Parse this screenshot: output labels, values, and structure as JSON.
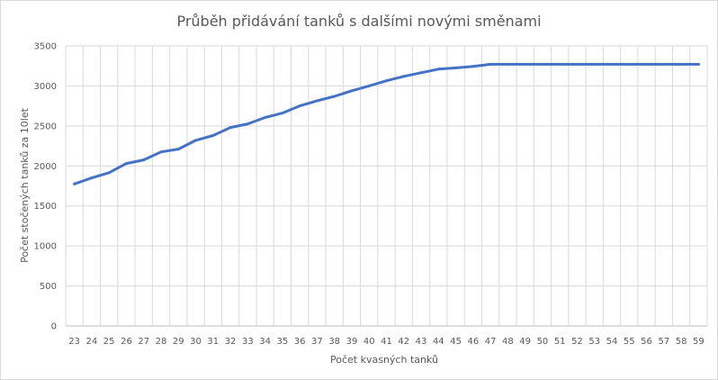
{
  "chart_data": {
    "type": "line",
    "title": "Průběh přidávání tanků s dalšími novými směnami",
    "xlabel": "Počet kvasných tanků",
    "ylabel": "Počet stočených tanků za 10let",
    "categories": [
      "23",
      "24",
      "25",
      "26",
      "27",
      "28",
      "29",
      "30",
      "31",
      "32",
      "33",
      "34",
      "35",
      "36",
      "37",
      "38",
      "39",
      "40",
      "41",
      "42",
      "43",
      "44",
      "45",
      "46",
      "47",
      "48",
      "49",
      "50",
      "51",
      "52",
      "53",
      "54",
      "55",
      "56",
      "57",
      "58",
      "59"
    ],
    "yticks": [
      "0",
      "500",
      "1000",
      "1500",
      "2000",
      "2500",
      "3000",
      "3500"
    ],
    "ylim": [
      0,
      3500
    ],
    "grid": true,
    "series": [
      {
        "values": [
          1775,
          1850,
          1915,
          2030,
          2075,
          2175,
          2210,
          2320,
          2380,
          2480,
          2525,
          2605,
          2660,
          2750,
          2815,
          2870,
          2940,
          3000,
          3065,
          3120,
          3165,
          3210,
          3225,
          3245,
          3270,
          3270,
          3270,
          3270,
          3270,
          3270,
          3270,
          3270,
          3270,
          3270,
          3270,
          3270,
          3270
        ]
      }
    ],
    "colors": {
      "series": "#4472c4",
      "grid": "#d9d9d9",
      "text": "#595959"
    }
  }
}
